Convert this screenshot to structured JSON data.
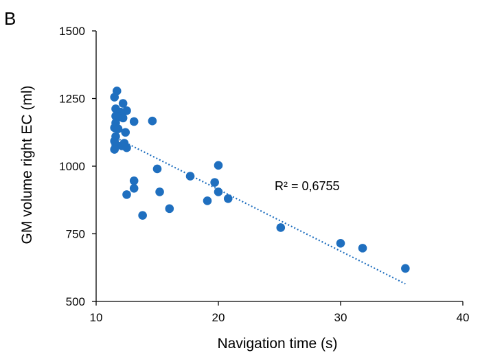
{
  "panel_label": "B",
  "chart_data": {
    "type": "scatter",
    "title": "",
    "xlabel": "Navigation time (s)",
    "ylabel": "GM volume right EC (ml)",
    "xlim": [
      10,
      40
    ],
    "ylim": [
      500,
      1500
    ],
    "x_ticks": [
      10,
      20,
      30,
      40
    ],
    "y_ticks": [
      500,
      750,
      1000,
      1250,
      1500
    ],
    "grid": false,
    "legend": "none",
    "marker_color": "#1f6fbf",
    "trendline": {
      "type": "linear",
      "style": "dotted",
      "color": "#1f6fbf",
      "x": [
        11.4,
        35.3
      ],
      "y": [
        1110,
        565
      ],
      "r2_label": "R² = 0,6755"
    },
    "points": [
      {
        "x": 11.7,
        "y": 1278
      },
      {
        "x": 11.5,
        "y": 1255
      },
      {
        "x": 12.2,
        "y": 1232
      },
      {
        "x": 11.6,
        "y": 1212
      },
      {
        "x": 12.5,
        "y": 1205
      },
      {
        "x": 12.0,
        "y": 1200
      },
      {
        "x": 11.6,
        "y": 1185
      },
      {
        "x": 11.9,
        "y": 1183
      },
      {
        "x": 12.2,
        "y": 1178
      },
      {
        "x": 13.1,
        "y": 1165
      },
      {
        "x": 14.6,
        "y": 1167
      },
      {
        "x": 11.6,
        "y": 1160
      },
      {
        "x": 11.5,
        "y": 1142
      },
      {
        "x": 11.8,
        "y": 1138
      },
      {
        "x": 12.4,
        "y": 1125
      },
      {
        "x": 11.6,
        "y": 1110
      },
      {
        "x": 11.5,
        "y": 1093
      },
      {
        "x": 12.3,
        "y": 1085
      },
      {
        "x": 11.6,
        "y": 1080
      },
      {
        "x": 12.1,
        "y": 1075
      },
      {
        "x": 12.5,
        "y": 1068
      },
      {
        "x": 11.5,
        "y": 1062
      },
      {
        "x": 20.0,
        "y": 1003
      },
      {
        "x": 15.0,
        "y": 990
      },
      {
        "x": 17.7,
        "y": 963
      },
      {
        "x": 13.1,
        "y": 946
      },
      {
        "x": 19.7,
        "y": 940
      },
      {
        "x": 13.1,
        "y": 918
      },
      {
        "x": 15.2,
        "y": 905
      },
      {
        "x": 20.0,
        "y": 905
      },
      {
        "x": 12.5,
        "y": 895
      },
      {
        "x": 20.8,
        "y": 880
      },
      {
        "x": 19.1,
        "y": 872
      },
      {
        "x": 16.0,
        "y": 843
      },
      {
        "x": 13.8,
        "y": 818
      },
      {
        "x": 25.1,
        "y": 773
      },
      {
        "x": 30.0,
        "y": 715
      },
      {
        "x": 31.8,
        "y": 697
      },
      {
        "x": 35.3,
        "y": 622
      }
    ]
  }
}
